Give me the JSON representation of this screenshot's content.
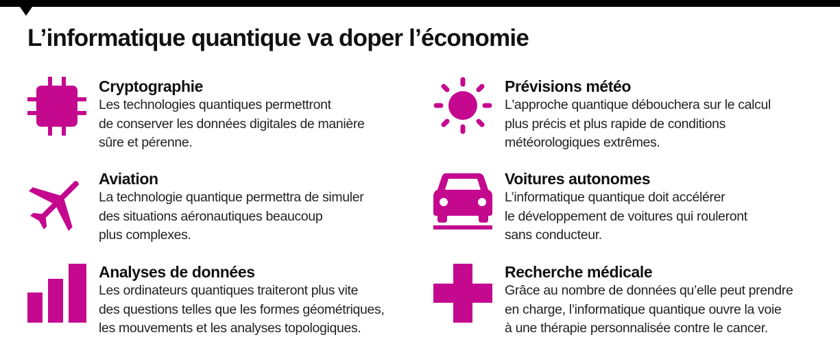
{
  "title": "L’informatique quantique va doper l’économie",
  "accent_color": "#c4098f",
  "items": [
    {
      "icon": "chip-icon",
      "heading": "Cryptographie",
      "lines": [
        "Les technologies quantiques permettront",
        "de conserver les données digitales de manière",
        "sûre et pérenne."
      ]
    },
    {
      "icon": "sun-icon",
      "heading": "Prévisions météo",
      "lines": [
        "L'approche quantique débouchera sur le calcul",
        "plus précis et plus rapide de conditions",
        "météorologiques extrêmes."
      ]
    },
    {
      "icon": "airplane-icon",
      "heading": "Aviation",
      "lines": [
        "La technologie quantique permettra de simuler",
        "des situations aéronautiques beaucoup",
        "plus complexes."
      ]
    },
    {
      "icon": "car-icon",
      "heading": "Voitures autonomes",
      "lines": [
        "L’informatique quantique doit accélérer",
        "le développement de voitures qui rouleront",
        "sans conducteur."
      ]
    },
    {
      "icon": "bar-chart-icon",
      "heading": "Analyses de données",
      "lines": [
        "Les ordinateurs quantiques traiteront plus vite",
        "des questions telles que les formes géométriques,",
        "les mouvements et les analyses topologiques."
      ]
    },
    {
      "icon": "medical-cross-icon",
      "heading": "Recherche médicale",
      "lines": [
        "Grâce au nombre de données qu’elle peut prendre",
        "en charge, l’informatique quantique ouvre la voie",
        "à une thérapie personnalisée contre le cancer."
      ]
    }
  ]
}
